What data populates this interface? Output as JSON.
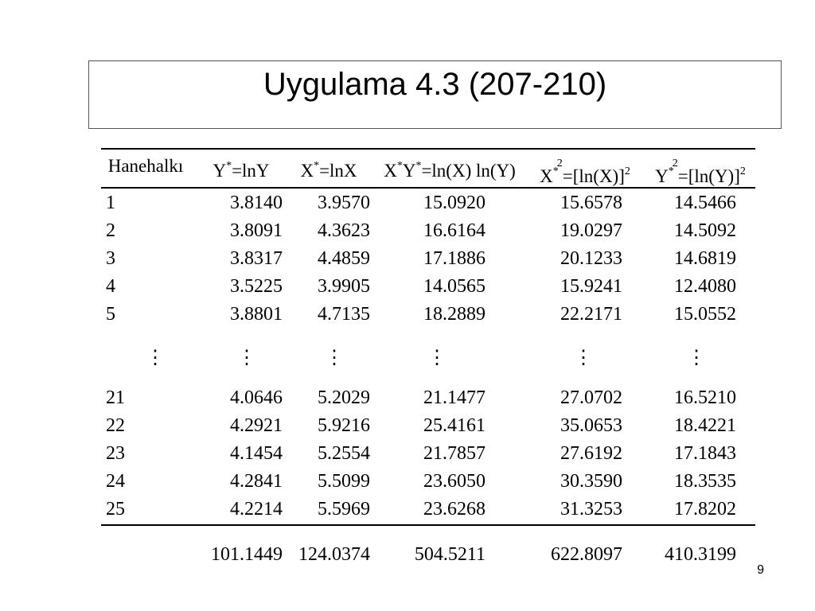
{
  "title": "Uygulama 4.3 (207-210)",
  "table": {
    "header": [
      [
        {
          "text": "Hanehalkı"
        }
      ],
      [
        {
          "text": "Y"
        },
        {
          "sup": "*"
        },
        {
          "text": "=lnY"
        }
      ],
      [
        {
          "text": "X"
        },
        {
          "sup": "*"
        },
        {
          "text": "=lnX"
        }
      ],
      [
        {
          "text": "X"
        },
        {
          "sup": "*"
        },
        {
          "text": "Y"
        },
        {
          "sup": "*"
        },
        {
          "text": "=ln(X) ln(Y)"
        }
      ],
      [
        {
          "text": "X"
        },
        {
          "sup": "*"
        },
        {
          "sup2": "2"
        },
        {
          "text": "=[ln(X)]"
        },
        {
          "sup": "2"
        }
      ],
      [
        {
          "text": "Y"
        },
        {
          "sup": "*"
        },
        {
          "sup2": "2"
        },
        {
          "text": "=[ln(Y)]"
        },
        {
          "sup": "2"
        }
      ]
    ],
    "rows_top": [
      [
        "1",
        "3.8140",
        "3.9570",
        "15.0920",
        "15.6578",
        "14.5466"
      ],
      [
        "2",
        "3.8091",
        "4.3623",
        "16.6164",
        "19.0297",
        "14.5092"
      ],
      [
        "3",
        "3.8317",
        "4.4859",
        "17.1886",
        "20.1233",
        "14.6819"
      ],
      [
        "4",
        "3.5225",
        "3.9905",
        "14.0565",
        "15.9241",
        "12.4080"
      ],
      [
        "5",
        "3.8801",
        "4.7135",
        "18.2889",
        "22.2171",
        "15.0552"
      ]
    ],
    "ellipsis_row": [
      "⋮",
      "⋮",
      "⋮",
      "⋮",
      "⋮",
      "⋮"
    ],
    "rows_bottom": [
      [
        "21",
        "4.0646",
        "5.2029",
        "21.1477",
        "27.0702",
        "16.5210"
      ],
      [
        "22",
        "4.2921",
        "5.9216",
        "25.4161",
        "35.0653",
        "18.4221"
      ],
      [
        "23",
        "4.1454",
        "5.2554",
        "21.7857",
        "27.6192",
        "17.1843"
      ],
      [
        "24",
        "4.2841",
        "5.5099",
        "23.6050",
        "30.3590",
        "18.3535"
      ],
      [
        "25",
        "4.2214",
        "5.5969",
        "23.6268",
        "31.3253",
        "17.8202"
      ]
    ],
    "totals": [
      "101.1449",
      "124.0374",
      "504.5211",
      "622.8097",
      "410.3199"
    ]
  },
  "page_number": "9"
}
